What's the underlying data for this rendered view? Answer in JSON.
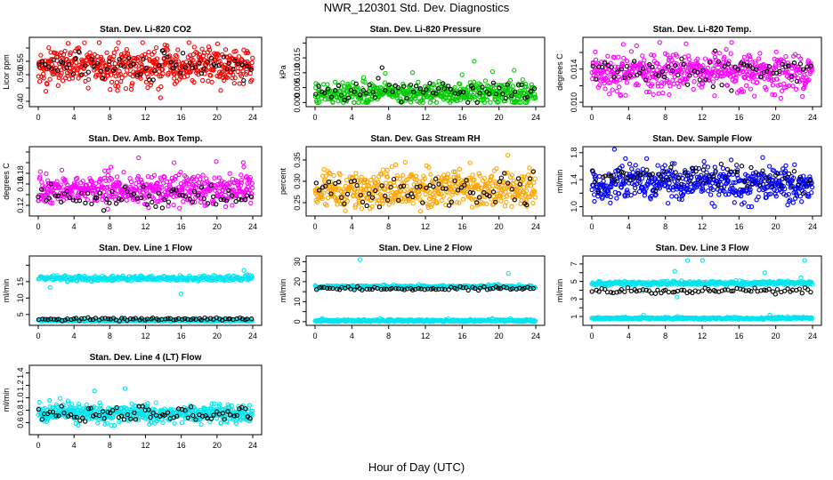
{
  "title": "NWR_120301  Std. Dev. Diagnostics",
  "x_axis_title": "Hour of Day (UTC)",
  "chart_data": [
    {
      "type": "scatter",
      "title": "Stan. Dev. Li-820 CO2",
      "ylabel": "Licor ppm",
      "xlim": [
        0,
        24
      ],
      "xticks": [
        "0",
        "4",
        "8",
        "12",
        "16",
        "20",
        "24"
      ],
      "ylim": [
        0.39,
        0.63
      ],
      "yticks": [
        0.4,
        0.45,
        0.5,
        0.55,
        0.6
      ],
      "ytick_labels": [
        "0.40",
        "",
        "0.50",
        "0.55",
        ""
      ],
      "series": [
        {
          "color": "#ff0000",
          "center": 0.53,
          "spread": 0.035,
          "min": 0.4,
          "max": 0.62,
          "n": 520
        },
        {
          "color": "#000000",
          "center": 0.53,
          "spread": 0.025,
          "min": 0.45,
          "max": 0.59,
          "n": 70
        }
      ]
    },
    {
      "type": "scatter",
      "title": "Stan. Dev. Li-820 Pressure",
      "ylabel": "kPa",
      "xlim": [
        0,
        24
      ],
      "xticks": [
        "0",
        "4",
        "8",
        "12",
        "16",
        "20",
        "24"
      ],
      "ylim": [
        -0.0005,
        0.021
      ],
      "yticks": [
        0.0,
        0.005,
        0.01,
        0.015,
        0.02
      ],
      "ytick_labels": [
        "0.000",
        "0.005",
        "0.010",
        "0.015",
        ""
      ],
      "series": [
        {
          "color": "#00cc00",
          "center": 0.003,
          "spread": 0.0018,
          "min": 0.0,
          "max": 0.021,
          "n": 520
        },
        {
          "color": "#000000",
          "center": 0.004,
          "spread": 0.0018,
          "min": 0.0,
          "max": 0.016,
          "n": 70
        }
      ]
    },
    {
      "type": "scatter",
      "title": "Stan. Dev. Li-820 Temp.",
      "ylabel": "degrees C",
      "xlim": [
        0,
        24
      ],
      "xticks": [
        "0",
        "4",
        "8",
        "12",
        "16",
        "20",
        "24"
      ],
      "ylim": [
        0.0098,
        0.0175
      ],
      "yticks": [
        0.01,
        0.012,
        0.014,
        0.016
      ],
      "ytick_labels": [
        "0.010",
        "",
        "0.014",
        ""
      ],
      "series": [
        {
          "color": "#ff00ff",
          "center": 0.0136,
          "spread": 0.0011,
          "min": 0.0105,
          "max": 0.0172,
          "n": 520
        },
        {
          "color": "#000000",
          "center": 0.0137,
          "spread": 0.0009,
          "min": 0.011,
          "max": 0.0165,
          "n": 70
        }
      ]
    },
    {
      "type": "scatter",
      "title": "Stan. Dev. Amb. Box Temp.",
      "ylabel": "degrees C",
      "xlim": [
        0,
        24
      ],
      "xticks": [
        "0",
        "4",
        "8",
        "12",
        "16",
        "20",
        "24"
      ],
      "ylim": [
        0.105,
        0.225
      ],
      "yticks": [
        0.12,
        0.14,
        0.16,
        0.18,
        0.2,
        0.22
      ],
      "ytick_labels": [
        "0.12",
        "",
        "0.16",
        "0.18",
        "",
        ""
      ],
      "series": [
        {
          "color": "#ff00ff",
          "center": 0.15,
          "spread": 0.014,
          "min": 0.11,
          "max": 0.22,
          "n": 520
        },
        {
          "color": "#000000",
          "center": 0.135,
          "spread": 0.01,
          "min": 0.11,
          "max": 0.16,
          "n": 70
        }
      ]
    },
    {
      "type": "scatter",
      "title": "Stan. Dev. Gas Stream RH",
      "ylabel": "percent",
      "xlim": [
        0,
        24
      ],
      "xticks": [
        "0",
        "4",
        "8",
        "12",
        "16",
        "20",
        "24"
      ],
      "ylim": [
        0.225,
        0.375
      ],
      "yticks": [
        0.25,
        0.3,
        0.35
      ],
      "ytick_labels": [
        "0.25",
        "0.30",
        "0.35"
      ],
      "series": [
        {
          "color": "#ffa500",
          "center": 0.28,
          "spread": 0.022,
          "min": 0.23,
          "max": 0.37,
          "n": 520
        },
        {
          "color": "#000000",
          "center": 0.28,
          "spread": 0.02,
          "min": 0.24,
          "max": 0.34,
          "n": 70
        }
      ]
    },
    {
      "type": "scatter",
      "title": "Stan. Dev. Sample Flow",
      "ylabel": "ml/min",
      "xlim": [
        0,
        24
      ],
      "xticks": [
        "0",
        "4",
        "8",
        "12",
        "16",
        "20",
        "24"
      ],
      "ylim": [
        0.9,
        1.85
      ],
      "yticks": [
        1.0,
        1.2,
        1.4,
        1.6,
        1.8
      ],
      "ytick_labels": [
        "1.0",
        "",
        "1.4",
        "",
        "1.8"
      ],
      "series": [
        {
          "color": "#0000ff",
          "center": 1.33,
          "spread": 0.12,
          "min": 0.95,
          "max": 1.85,
          "n": 520
        },
        {
          "color": "#000000",
          "center": 1.45,
          "spread": 0.1,
          "min": 1.15,
          "max": 1.7,
          "n": 70
        }
      ]
    },
    {
      "type": "scatter",
      "title": "Stan. Dev. Line 1 Flow",
      "ylabel": "ml/min",
      "xlim": [
        0,
        24
      ],
      "xticks": [
        "0",
        "4",
        "8",
        "12",
        "16",
        "20",
        "24"
      ],
      "ylim": [
        2.5,
        22
      ],
      "yticks": [
        5,
        10,
        15,
        20
      ],
      "ytick_labels": [
        "5",
        "10",
        "15",
        ""
      ],
      "series": [
        {
          "color": "#00e5ee",
          "center": 16,
          "spread": 0.4,
          "min": 3,
          "max": 21.5,
          "n": 330
        },
        {
          "color": "#00e5ee",
          "center": 3.2,
          "spread": 0.15,
          "min": 2.8,
          "max": 4,
          "n": 330
        },
        {
          "color": "#000000",
          "center": 3.6,
          "spread": 0.2,
          "min": 3,
          "max": 4.2,
          "n": 75
        }
      ]
    },
    {
      "type": "scatter",
      "title": "Stan. Dev. Line 2 Flow",
      "ylabel": "ml/min",
      "xlim": [
        0,
        24
      ],
      "xticks": [
        "0",
        "4",
        "8",
        "12",
        "16",
        "20",
        "24"
      ],
      "ylim": [
        -0.5,
        31.5
      ],
      "yticks": [
        0,
        5,
        10,
        15,
        20,
        25,
        30
      ],
      "ytick_labels": [
        "0",
        "",
        "10",
        "",
        "20",
        "",
        "30"
      ],
      "series": [
        {
          "color": "#00e5ee",
          "center": 17.5,
          "spread": 0.4,
          "min": 0,
          "max": 31,
          "n": 330
        },
        {
          "color": "#00e5ee",
          "center": 0.5,
          "spread": 0.3,
          "min": 0,
          "max": 2,
          "n": 330
        },
        {
          "color": "#000000",
          "center": 16.5,
          "spread": 0.5,
          "min": 15,
          "max": 18,
          "n": 75
        }
      ]
    },
    {
      "type": "scatter",
      "title": "Stan. Dev. Line 3 Flow",
      "ylabel": "ml/min",
      "xlim": [
        0,
        24
      ],
      "xticks": [
        "0",
        "4",
        "8",
        "12",
        "16",
        "20",
        "24"
      ],
      "ylim": [
        0.3,
        7.6
      ],
      "yticks": [
        1,
        2,
        3,
        4,
        5,
        6,
        7
      ],
      "ytick_labels": [
        "1",
        "",
        "3",
        "",
        "5",
        "",
        "7"
      ],
      "series": [
        {
          "color": "#00e5ee",
          "center": 4.8,
          "spread": 0.12,
          "min": 1,
          "max": 7.4,
          "n": 330
        },
        {
          "color": "#00e5ee",
          "center": 0.8,
          "spread": 0.06,
          "min": 0.6,
          "max": 1.2,
          "n": 330
        },
        {
          "color": "#000000",
          "center": 3.9,
          "spread": 0.15,
          "min": 3.4,
          "max": 4.3,
          "n": 75
        }
      ]
    },
    {
      "type": "scatter",
      "title": "Stan. Dev. Line 4 (LT) Flow",
      "ylabel": "ml/min",
      "xlim": [
        0,
        24
      ],
      "xticks": [
        "0",
        "4",
        "8",
        "12",
        "16",
        "20",
        "24"
      ],
      "ylim": [
        0.45,
        1.48
      ],
      "yticks": [
        0.6,
        0.8,
        1.0,
        1.2,
        1.4
      ],
      "ytick_labels": [
        "0.6",
        "0.8",
        "1.0",
        "1.2",
        "1.4"
      ],
      "series": [
        {
          "color": "#00e5ee",
          "center": 0.75,
          "spread": 0.07,
          "min": 0.55,
          "max": 1.45,
          "n": 520
        },
        {
          "color": "#000000",
          "center": 0.73,
          "spread": 0.07,
          "min": 0.55,
          "max": 0.9,
          "n": 75
        }
      ]
    }
  ]
}
